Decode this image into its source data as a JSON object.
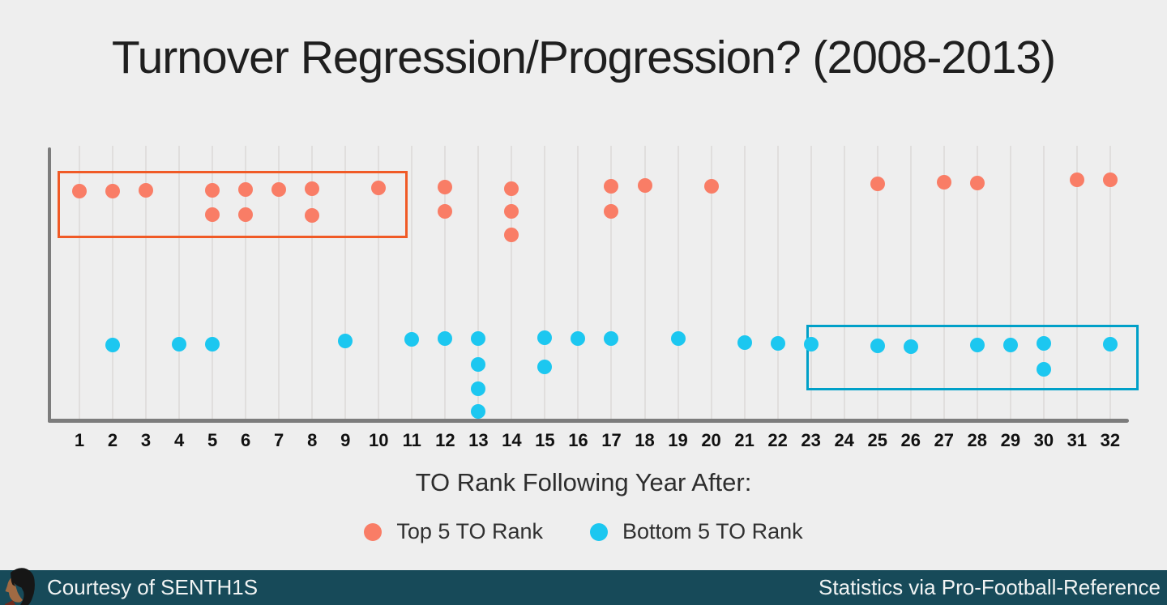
{
  "title": "Turnover Regression/Progression? (2008-2013)",
  "chart_data": {
    "type": "scatter",
    "title": "Turnover Regression/Progression? (2008-2013)",
    "xlabel": "TO Rank Following Year After:",
    "ylabel": "",
    "x_range": [
      1,
      32
    ],
    "grid": "vertical-only",
    "legend_position": "bottom-center",
    "x_ticks": [
      "1",
      "2",
      "3",
      "4",
      "5",
      "6",
      "7",
      "8",
      "9",
      "10",
      "11",
      "12",
      "13",
      "14",
      "15",
      "16",
      "17",
      "18",
      "19",
      "20",
      "21",
      "22",
      "23",
      "24",
      "25",
      "26",
      "27",
      "28",
      "29",
      "30",
      "31",
      "32"
    ],
    "series": [
      {
        "name": "Top 5 TO Rank",
        "color": "#f97d66",
        "row": "top",
        "points": [
          {
            "rank": 1,
            "stack": 0,
            "dy": 4
          },
          {
            "rank": 2,
            "stack": 0,
            "dy": 4
          },
          {
            "rank": 3,
            "stack": 0,
            "dy": 3
          },
          {
            "rank": 5,
            "stack": 0,
            "dy": 3
          },
          {
            "rank": 5,
            "stack": 1,
            "dy": 4
          },
          {
            "rank": 6,
            "stack": 0,
            "dy": 2
          },
          {
            "rank": 6,
            "stack": 1,
            "dy": 4
          },
          {
            "rank": 7,
            "stack": 0,
            "dy": 2
          },
          {
            "rank": 8,
            "stack": 0,
            "dy": 1
          },
          {
            "rank": 8,
            "stack": 1,
            "dy": 5
          },
          {
            "rank": 10,
            "stack": 0,
            "dy": 0
          },
          {
            "rank": 12,
            "stack": 0,
            "dy": -1
          },
          {
            "rank": 12,
            "stack": 1,
            "dy": 0
          },
          {
            "rank": 14,
            "stack": 0,
            "dy": 1
          },
          {
            "rank": 14,
            "stack": 1,
            "dy": 0
          },
          {
            "rank": 14,
            "stack": 2,
            "dy": 0
          },
          {
            "rank": 17,
            "stack": 0,
            "dy": -2
          },
          {
            "rank": 17,
            "stack": 1,
            "dy": 0
          },
          {
            "rank": 18,
            "stack": 0,
            "dy": -3
          },
          {
            "rank": 20,
            "stack": 0,
            "dy": -2
          },
          {
            "rank": 25,
            "stack": 0,
            "dy": -5
          },
          {
            "rank": 27,
            "stack": 0,
            "dy": -7
          },
          {
            "rank": 28,
            "stack": 0,
            "dy": -6
          },
          {
            "rank": 31,
            "stack": 0,
            "dy": -10
          },
          {
            "rank": 32,
            "stack": 0,
            "dy": -10
          }
        ]
      },
      {
        "name": "Bottom 5 TO Rank",
        "color": "#1cc7f0",
        "row": "bottom",
        "points": [
          {
            "rank": 2,
            "stack": 0,
            "dy": 7
          },
          {
            "rank": 4,
            "stack": 0,
            "dy": 6
          },
          {
            "rank": 5,
            "stack": 0,
            "dy": 6
          },
          {
            "rank": 9,
            "stack": 0,
            "dy": 2
          },
          {
            "rank": 11,
            "stack": 0,
            "dy": 0
          },
          {
            "rank": 12,
            "stack": 0,
            "dy": -1
          },
          {
            "rank": 13,
            "stack": 0,
            "dy": -1
          },
          {
            "rank": 13,
            "stack": 1,
            "dy": 1
          },
          {
            "rank": 13,
            "stack": 2,
            "dy": 1
          },
          {
            "rank": 13,
            "stack": 3,
            "dy": -1
          },
          {
            "rank": 15,
            "stack": 0,
            "dy": -2
          },
          {
            "rank": 15,
            "stack": 1,
            "dy": 4
          },
          {
            "rank": 16,
            "stack": 0,
            "dy": -1
          },
          {
            "rank": 17,
            "stack": 0,
            "dy": -1
          },
          {
            "rank": 19,
            "stack": 0,
            "dy": -1
          },
          {
            "rank": 21,
            "stack": 0,
            "dy": 4
          },
          {
            "rank": 22,
            "stack": 0,
            "dy": 5
          },
          {
            "rank": 23,
            "stack": 0,
            "dy": 6
          },
          {
            "rank": 25,
            "stack": 0,
            "dy": 8
          },
          {
            "rank": 26,
            "stack": 0,
            "dy": 9
          },
          {
            "rank": 28,
            "stack": 0,
            "dy": 7
          },
          {
            "rank": 29,
            "stack": 0,
            "dy": 7
          },
          {
            "rank": 30,
            "stack": 0,
            "dy": 5
          },
          {
            "rank": 30,
            "stack": 1,
            "dy": 7
          },
          {
            "rank": 32,
            "stack": 0,
            "dy": 6
          }
        ]
      }
    ],
    "annotations": [
      {
        "name": "top5-cluster-box",
        "color": "#f05a26",
        "from_rank": 1,
        "to_rank": 10,
        "row": "top"
      },
      {
        "name": "bottom5-cluster-box",
        "color": "#00a0c8",
        "from_rank": 23,
        "to_rank": 32,
        "row": "bottom"
      }
    ]
  },
  "axis": {
    "x_title": "TO Rank Following Year After:"
  },
  "legend": {
    "top5_label": "Top 5 TO Rank",
    "bottom5_label": "Bottom 5 TO Rank"
  },
  "footer": {
    "left": "Courtesy of SENTH1S",
    "right": "Statistics via Pro-Football-Reference",
    "avatar": "senth1s-avatar",
    "background_color": "#174a59"
  },
  "colors": {
    "background": "#eeeeee",
    "top5_dot": "#f97d66",
    "bottom5_dot": "#1cc7f0",
    "top5_box_border": "#f05a26",
    "bottom5_box_border": "#00a0c8",
    "axis_line": "#7c7c7c"
  }
}
